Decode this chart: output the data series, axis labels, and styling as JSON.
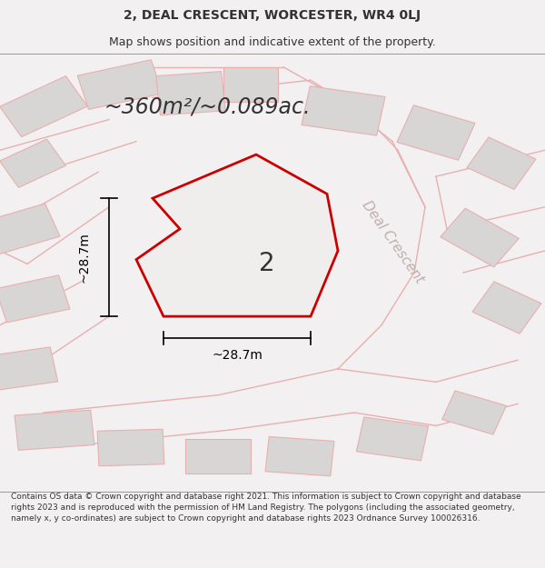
{
  "title_line1": "2, DEAL CRESCENT, WORCESTER, WR4 0LJ",
  "title_line2": "Map shows position and indicative extent of the property.",
  "area_text": "~360m²/~0.089ac.",
  "label_number": "2",
  "dim_horizontal": "~28.7m",
  "dim_vertical": "~28.7m",
  "street_label": "Deal Crescent",
  "footer_text": "Contains OS data © Crown copyright and database right 2021. This information is subject to Crown copyright and database rights 2023 and is reproduced with the permission of HM Land Registry. The polygons (including the associated geometry, namely x, y co-ordinates) are subject to Crown copyright and database rights 2023 Ordnance Survey 100026316.",
  "bg_color": "#f2f0f0",
  "map_bg": "#f2f0f0",
  "road_bg": "#e8e5e5",
  "bld_face": "#d8d5d5",
  "bld_edge": "#e8b0b0",
  "road_line": "#e8b0b0",
  "highlight_color": "#cc0000",
  "prop_fill": "#f0eeed",
  "text_color": "#333333",
  "street_color": "#c0b0b0",
  "title_fontsize": 10,
  "subtitle_fontsize": 9,
  "area_fontsize": 17,
  "label_fontsize": 20,
  "dim_fontsize": 10,
  "street_fontsize": 11,
  "footer_fontsize": 6.5
}
